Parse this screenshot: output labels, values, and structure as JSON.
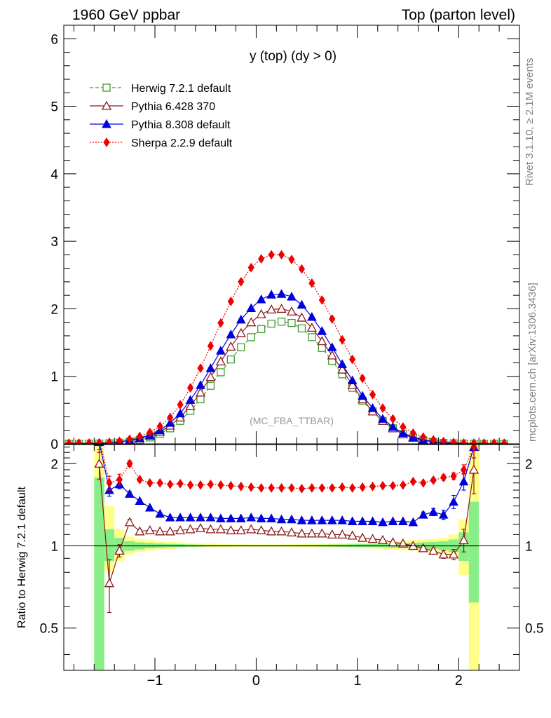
{
  "header": {
    "left": "1960 GeV ppbar",
    "right": "Top (parton level)"
  },
  "side": {
    "rivet": "Rivet 3.1.10, ≥ 2.1M events",
    "mcplots": "mcplots.cern.ch [arXiv:1306.3436]"
  },
  "watermark": "(MC_FBA_TTBAR)",
  "colors": {
    "herwig": "#3f9d2d",
    "pythia6": "#8b1a1a",
    "pythia8": "#0000dd",
    "sherpa": "#ee0000",
    "band_yellow": "#ffff88",
    "band_green": "#88ee88"
  },
  "chart_data": [
    {
      "type": "line",
      "title": "y (top) (dy > 0)",
      "xlabel": "",
      "ylabel": "",
      "xlim": [
        -1.9,
        2.6
      ],
      "ylim": [
        0,
        6.2
      ],
      "yticks": [
        0,
        1,
        2,
        3,
        4,
        5,
        6
      ],
      "ytick_labels": [
        "0",
        "1",
        "2",
        "3",
        "4",
        "5",
        "6"
      ],
      "legend_position": "top-left",
      "x": [
        -1.85,
        -1.75,
        -1.65,
        -1.55,
        -1.45,
        -1.35,
        -1.25,
        -1.15,
        -1.05,
        -0.95,
        -0.85,
        -0.75,
        -0.65,
        -0.55,
        -0.45,
        -0.35,
        -0.25,
        -0.15,
        -0.05,
        0.05,
        0.15,
        0.25,
        0.35,
        0.45,
        0.55,
        0.65,
        0.75,
        0.85,
        0.95,
        1.05,
        1.15,
        1.25,
        1.35,
        1.45,
        1.55,
        1.65,
        1.75,
        1.85,
        1.95,
        2.05,
        2.15,
        2.25,
        2.35,
        2.45
      ],
      "series": [
        {
          "name": "Herwig 7.2.1 default",
          "color_key": "herwig",
          "marker": "open-square",
          "line": "dashed",
          "values": [
            0,
            0,
            0.002,
            0.004,
            0.008,
            0.017,
            0.032,
            0.056,
            0.095,
            0.15,
            0.23,
            0.34,
            0.49,
            0.66,
            0.86,
            1.06,
            1.25,
            1.43,
            1.58,
            1.7,
            1.78,
            1.81,
            1.79,
            1.71,
            1.58,
            1.42,
            1.23,
            1.03,
            0.83,
            0.64,
            0.48,
            0.34,
            0.23,
            0.145,
            0.09,
            0.052,
            0.028,
            0.014,
            0.007,
            0.003,
            0.001,
            0,
            0,
            0
          ]
        },
        {
          "name": "Pythia 6.428 370",
          "color_key": "pythia6",
          "marker": "open-triangle",
          "line": "solid",
          "values": [
            0,
            0,
            0.004,
            0.008,
            0.014,
            0.03,
            0.05,
            0.08,
            0.12,
            0.18,
            0.27,
            0.39,
            0.56,
            0.76,
            0.99,
            1.22,
            1.44,
            1.64,
            1.8,
            1.92,
            1.99,
            2.0,
            1.96,
            1.87,
            1.72,
            1.52,
            1.31,
            1.1,
            0.87,
            0.66,
            0.48,
            0.34,
            0.23,
            0.14,
            0.09,
            0.05,
            0.027,
            0.013,
            0.006,
            0.003,
            0.002,
            0,
            0,
            0
          ]
        },
        {
          "name": "Pythia 8.308 default",
          "color_key": "pythia8",
          "marker": "filled-triangle",
          "line": "solid",
          "values": [
            0,
            0,
            0.005,
            0.01,
            0.015,
            0.03,
            0.052,
            0.083,
            0.13,
            0.2,
            0.31,
            0.45,
            0.65,
            0.87,
            1.12,
            1.38,
            1.62,
            1.84,
            2.01,
            2.14,
            2.21,
            2.22,
            2.18,
            2.06,
            1.88,
            1.67,
            1.43,
            1.18,
            0.94,
            0.71,
            0.53,
            0.37,
            0.25,
            0.16,
            0.1,
            0.06,
            0.035,
            0.018,
            0.01,
            0.005,
            0.002,
            0,
            0,
            0
          ]
        },
        {
          "name": "Sherpa 2.2.9 default",
          "color_key": "sherpa",
          "marker": "filled-diamond",
          "line": "dotted",
          "values": [
            0.01,
            0.01,
            0.012,
            0.015,
            0.022,
            0.038,
            0.067,
            0.11,
            0.17,
            0.26,
            0.39,
            0.58,
            0.83,
            1.12,
            1.45,
            1.79,
            2.11,
            2.4,
            2.61,
            2.74,
            2.8,
            2.8,
            2.73,
            2.59,
            2.38,
            2.13,
            1.85,
            1.54,
            1.25,
            0.97,
            0.73,
            0.53,
            0.37,
            0.25,
            0.16,
            0.1,
            0.06,
            0.035,
            0.02,
            0.012,
            0.01,
            0.01,
            0.01,
            0.01
          ]
        }
      ]
    },
    {
      "type": "line",
      "title": "",
      "xlabel": "",
      "ylabel": "Ratio to Herwig 7.2.1 default",
      "xlim": [
        -1.9,
        2.6
      ],
      "ylim": [
        0.35,
        2.35
      ],
      "y_scale": "log",
      "yticks": [
        0.5,
        1,
        2
      ],
      "ytick_labels": [
        "0.5",
        "1",
        "2"
      ],
      "xticks": [
        -1,
        0,
        1,
        2
      ],
      "xtick_labels": [
        "−1",
        "0",
        "1",
        "2"
      ],
      "reference_line": 1,
      "x": [
        -1.55,
        -1.45,
        -1.35,
        -1.25,
        -1.15,
        -1.05,
        -0.95,
        -0.85,
        -0.75,
        -0.65,
        -0.55,
        -0.45,
        -0.35,
        -0.25,
        -0.15,
        -0.05,
        0.05,
        0.15,
        0.25,
        0.35,
        0.45,
        0.55,
        0.65,
        0.75,
        0.85,
        0.95,
        1.05,
        1.15,
        1.25,
        1.35,
        1.45,
        1.55,
        1.65,
        1.75,
        1.85,
        1.95,
        2.05,
        2.15
      ],
      "bands": {
        "x_edges": [
          -1.6,
          -1.5,
          -1.4,
          -1.3,
          -1.2,
          -1.1,
          -1.0,
          -0.9,
          -0.8,
          -0.7,
          -0.6,
          -0.5,
          -0.4,
          -0.3,
          -0.2,
          -0.1,
          0.0,
          0.1,
          0.2,
          0.3,
          0.4,
          0.5,
          0.6,
          0.7,
          0.8,
          0.9,
          1.0,
          1.1,
          1.2,
          1.3,
          1.4,
          1.5,
          1.6,
          1.7,
          1.8,
          1.9,
          2.0,
          2.1,
          2.2
        ],
        "yellow_lo": [
          0.35,
          0.8,
          0.88,
          0.93,
          0.95,
          0.96,
          0.97,
          0.975,
          0.98,
          0.985,
          0.987,
          0.99,
          0.99,
          0.992,
          0.993,
          0.993,
          0.993,
          0.993,
          0.993,
          0.992,
          0.99,
          0.99,
          0.988,
          0.986,
          0.985,
          0.982,
          0.98,
          0.978,
          0.975,
          0.97,
          0.965,
          0.96,
          0.955,
          0.95,
          0.93,
          0.9,
          0.78,
          0.35
        ],
        "yellow_hi": [
          2.35,
          1.4,
          1.15,
          1.08,
          1.06,
          1.05,
          1.04,
          1.035,
          1.03,
          1.025,
          1.02,
          1.018,
          1.016,
          1.015,
          1.014,
          1.013,
          1.013,
          1.013,
          1.013,
          1.014,
          1.015,
          1.016,
          1.018,
          1.02,
          1.022,
          1.025,
          1.028,
          1.03,
          1.035,
          1.04,
          1.045,
          1.05,
          1.055,
          1.06,
          1.07,
          1.1,
          1.25,
          2.35
        ],
        "green_lo": [
          0.35,
          0.88,
          0.93,
          0.96,
          0.97,
          0.98,
          0.985,
          0.988,
          0.99,
          0.992,
          0.993,
          0.995,
          0.995,
          0.996,
          0.996,
          0.996,
          0.996,
          0.996,
          0.996,
          0.996,
          0.995,
          0.995,
          0.994,
          0.993,
          0.992,
          0.991,
          0.99,
          0.989,
          0.988,
          0.985,
          0.982,
          0.98,
          0.977,
          0.975,
          0.965,
          0.95,
          0.88,
          0.62
        ],
        "green_hi": [
          1.78,
          1.15,
          1.07,
          1.04,
          1.03,
          1.025,
          1.02,
          1.017,
          1.015,
          1.012,
          1.01,
          1.009,
          1.008,
          1.007,
          1.007,
          1.006,
          1.006,
          1.006,
          1.006,
          1.007,
          1.008,
          1.009,
          1.01,
          1.011,
          1.012,
          1.013,
          1.015,
          1.016,
          1.018,
          1.02,
          1.023,
          1.026,
          1.03,
          1.033,
          1.04,
          1.055,
          1.12,
          1.45
        ]
      },
      "series": [
        {
          "name": "Pythia 6.428 370",
          "color_key": "pythia6",
          "marker": "open-triangle",
          "values": [
            2.0,
            0.73,
            0.96,
            1.22,
            1.13,
            1.14,
            1.13,
            1.13,
            1.14,
            1.15,
            1.16,
            1.15,
            1.15,
            1.14,
            1.14,
            1.15,
            1.14,
            1.13,
            1.13,
            1.12,
            1.11,
            1.11,
            1.11,
            1.1,
            1.1,
            1.09,
            1.07,
            1.06,
            1.05,
            1.03,
            1.02,
            1.0,
            0.98,
            0.96,
            0.93,
            0.93,
            1.05,
            1.9
          ],
          "err": [
            0.25,
            0.16,
            0.05,
            0.03,
            0.02,
            0.01,
            0.01,
            0.01,
            0.01,
            0.01,
            0.01,
            0.01,
            0.01,
            0.01,
            0.01,
            0.01,
            0.01,
            0.01,
            0.01,
            0.01,
            0.01,
            0.01,
            0.01,
            0.01,
            0.01,
            0.01,
            0.01,
            0.01,
            0.01,
            0.01,
            0.01,
            0.01,
            0.02,
            0.02,
            0.03,
            0.04,
            0.1,
            0.35
          ]
        },
        {
          "name": "Pythia 8.308 default",
          "color_key": "pythia8",
          "marker": "filled-triangle",
          "values": [
            2.4,
            1.6,
            1.68,
            1.55,
            1.46,
            1.38,
            1.31,
            1.27,
            1.27,
            1.27,
            1.27,
            1.27,
            1.26,
            1.26,
            1.26,
            1.27,
            1.26,
            1.26,
            1.25,
            1.25,
            1.24,
            1.24,
            1.24,
            1.24,
            1.24,
            1.23,
            1.23,
            1.23,
            1.22,
            1.23,
            1.23,
            1.22,
            1.3,
            1.33,
            1.3,
            1.45,
            1.72,
            2.3
          ],
          "err": [
            0.2,
            0.08,
            0.06,
            0.03,
            0.02,
            0.015,
            0.01,
            0.01,
            0.01,
            0.01,
            0.01,
            0.01,
            0.01,
            0.01,
            0.01,
            0.01,
            0.01,
            0.01,
            0.01,
            0.01,
            0.01,
            0.01,
            0.01,
            0.01,
            0.01,
            0.01,
            0.01,
            0.01,
            0.01,
            0.01,
            0.01,
            0.015,
            0.03,
            0.04,
            0.05,
            0.08,
            0.12,
            0.2
          ]
        },
        {
          "name": "Sherpa 2.2.9 default",
          "color_key": "sherpa",
          "marker": "filled-diamond",
          "values": [
            2.5,
            1.7,
            1.75,
            2.0,
            1.75,
            1.7,
            1.7,
            1.68,
            1.69,
            1.67,
            1.67,
            1.68,
            1.67,
            1.66,
            1.65,
            1.64,
            1.63,
            1.63,
            1.63,
            1.63,
            1.62,
            1.63,
            1.63,
            1.63,
            1.64,
            1.63,
            1.64,
            1.65,
            1.66,
            1.66,
            1.67,
            1.72,
            1.7,
            1.74,
            1.78,
            1.8,
            1.9,
            2.3
          ],
          "err": [
            0.3,
            0.1,
            0.08,
            0.05,
            0.03,
            0.02,
            0.015,
            0.01,
            0.01,
            0.01,
            0.01,
            0.01,
            0.01,
            0.01,
            0.01,
            0.01,
            0.01,
            0.01,
            0.01,
            0.01,
            0.01,
            0.01,
            0.01,
            0.01,
            0.01,
            0.01,
            0.01,
            0.01,
            0.01,
            0.01,
            0.01,
            0.02,
            0.02,
            0.03,
            0.04,
            0.05,
            0.08,
            0.2
          ]
        }
      ]
    }
  ]
}
